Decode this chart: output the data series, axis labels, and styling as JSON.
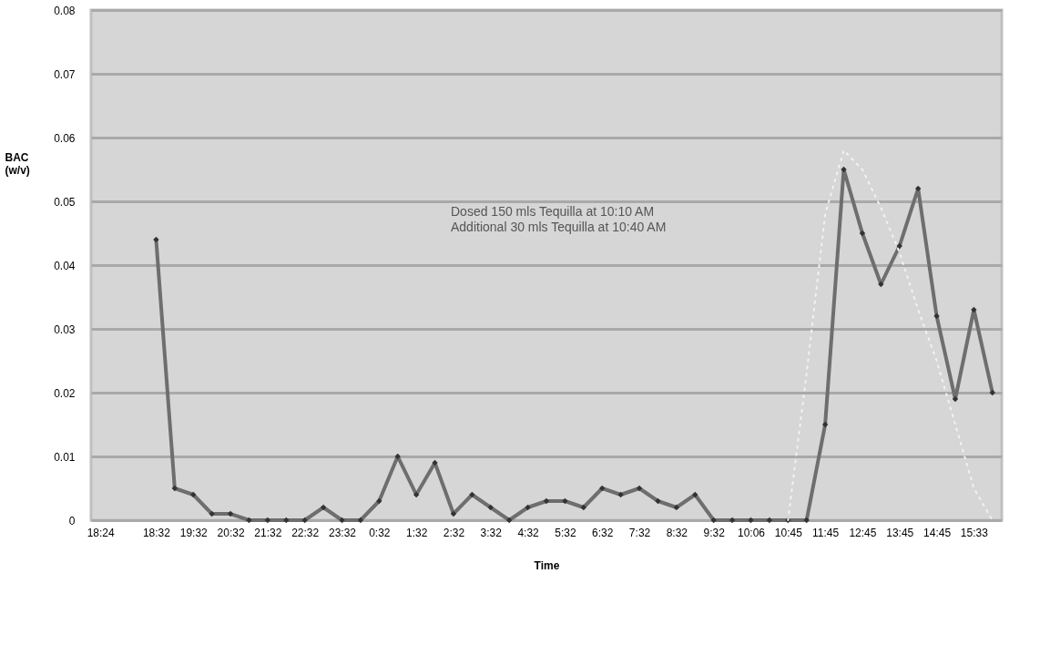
{
  "chart_data": {
    "type": "line",
    "xlabel": "Time",
    "ylabel": "BAC (w/v)",
    "categories": [
      "18:24",
      null,
      null,
      "18:32",
      null,
      "19:32",
      null,
      "20:32",
      null,
      "21:32",
      null,
      "22:32",
      null,
      "23:32",
      null,
      "0:32",
      null,
      "1:32",
      null,
      "2:32",
      null,
      "3:32",
      null,
      "4:32",
      null,
      "5:32",
      null,
      "6:32",
      null,
      "7:32",
      null,
      "8:32",
      null,
      "9:32",
      null,
      "10:06",
      null,
      "10:45",
      null,
      "11:45",
      null,
      "12:45",
      null,
      "13:45",
      null,
      "14:45",
      null,
      "15:33",
      null
    ],
    "series": [
      {
        "color": "#6e6e6e",
        "marker": "diamond",
        "line_style": "solid",
        "values": [
          null,
          null,
          null,
          0.044,
          0.005,
          0.004,
          0.001,
          0.001,
          0,
          0,
          0,
          0,
          0.002,
          0,
          0,
          0.003,
          0.01,
          0.004,
          0.009,
          0.001,
          0.004,
          0.002,
          0,
          0.002,
          0.003,
          0.003,
          0.002,
          0.005,
          0.004,
          0.005,
          0.003,
          0.002,
          0.004,
          0,
          0,
          0,
          0,
          0,
          0,
          0.015,
          0.055,
          0.045,
          0.037,
          0.043,
          0.052,
          0.032,
          0.019,
          0.033,
          0.02
        ]
      },
      {
        "color": "#f2f2f2",
        "marker": "none",
        "line_style": "dotted",
        "values": [
          null,
          null,
          null,
          null,
          null,
          null,
          null,
          null,
          null,
          null,
          null,
          null,
          null,
          null,
          null,
          null,
          null,
          null,
          null,
          null,
          null,
          null,
          null,
          null,
          null,
          null,
          null,
          null,
          null,
          null,
          null,
          null,
          null,
          null,
          null,
          null,
          null,
          0,
          0.023,
          0.048,
          0.058,
          0.055,
          0.049,
          0.042,
          0.033,
          0.025,
          0.015,
          0.005,
          0
        ]
      }
    ],
    "ylim": [
      0,
      0.08
    ],
    "yticks": [
      0,
      0.01,
      0.02,
      0.03,
      0.04,
      0.05,
      0.06,
      0.07,
      0.08
    ],
    "grid": "y",
    "legend": false,
    "annotations": [
      "Dosed 150 mls Tequilla at 10:10 AM",
      "Additional 30 mls Tequilla at 10:40 AM"
    ]
  }
}
